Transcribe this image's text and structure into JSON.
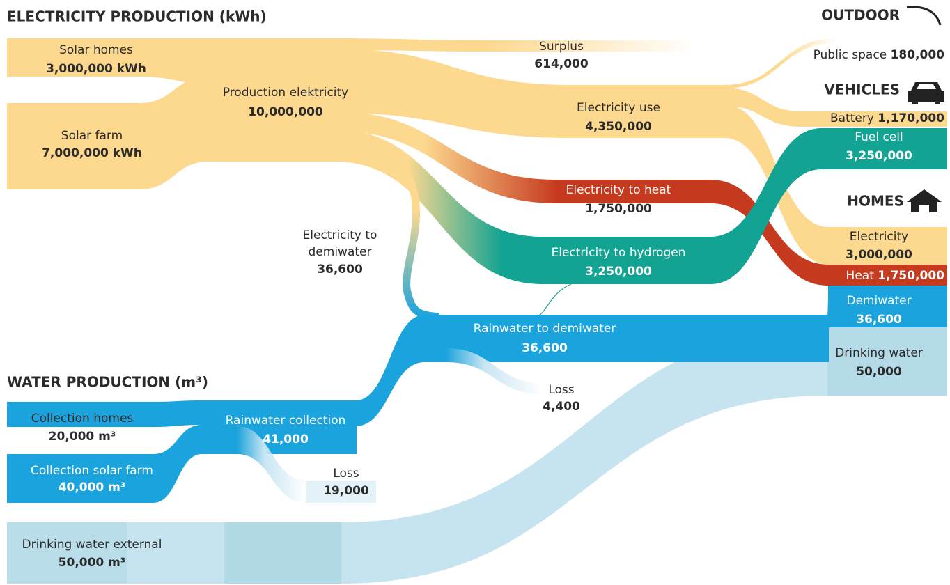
{
  "sections": {
    "electricity": "ELECTRICITY PRODUCTION (kWh)",
    "water": "WATER PRODUCTION (m³)",
    "outdoor": "OUTDOOR",
    "vehicles": "VEHICLES",
    "homes": "HOMES"
  },
  "nodes": {
    "solar_homes": {
      "label": "Solar homes",
      "value": "3,000,000 kWh"
    },
    "solar_farm": {
      "label": "Solar farm",
      "value": "7,000,000 kWh"
    },
    "production": {
      "label": "Production elektricity",
      "value": "10,000,000"
    },
    "surplus": {
      "label": "Surplus",
      "value": "614,000"
    },
    "electricity_use": {
      "label": "Electricity use",
      "value": "4,350,000"
    },
    "electricity_to_heat": {
      "label": "Electricity to heat",
      "value": "1,750,000"
    },
    "electricity_to_hydrogen": {
      "label": "Electricity to hydrogen",
      "value": "3,250,000"
    },
    "electricity_to_demiwater": {
      "label": [
        "Electricity to",
        "demiwater"
      ],
      "value": "36,600"
    },
    "rainwater_to_demiwater": {
      "label": "Rainwater to demiwater",
      "value": "36,600"
    },
    "loss_demiwater": {
      "label": "Loss",
      "value": "4,400"
    },
    "collection_homes": {
      "label": "Collection homes",
      "value": "20,000 m³"
    },
    "collection_solar_farm": {
      "label": "Collection solar farm",
      "value": "40,000 m³"
    },
    "rainwater_collection": {
      "label": "Rainwater collection",
      "value": "41,000"
    },
    "loss_collection": {
      "label": "Loss",
      "value": "19,000"
    },
    "drinking_water_external": {
      "label": "Drinking water external",
      "value": "50,000 m³"
    },
    "public_space": {
      "label": "Public space",
      "value": "180,000"
    },
    "battery": {
      "label": "Battery",
      "value": "1,170,000"
    },
    "fuel_cell": {
      "label": "Fuel cell",
      "value": "3,250,000"
    },
    "home_electricity": {
      "label": "Electricity",
      "value": "3,000,000"
    },
    "home_heat": {
      "label": "Heat",
      "value": "1,750,000"
    },
    "demiwater": {
      "label": "Demiwater",
      "value": "36,600"
    },
    "drinking_water": {
      "label": "Drinking water",
      "value": "50,000"
    }
  }
}
